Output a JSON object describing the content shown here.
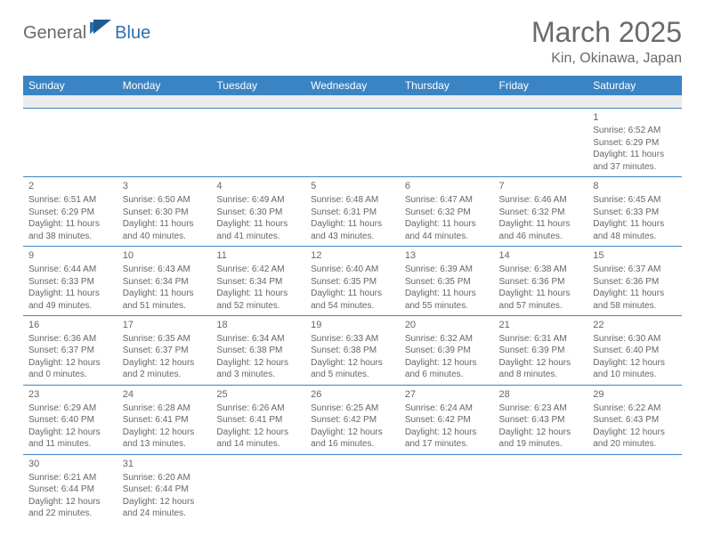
{
  "brand": {
    "part1": "General",
    "part2": "Blue"
  },
  "title": "March 2025",
  "location": "Kin, Okinawa, Japan",
  "colors": {
    "header_bg": "#3b84c4",
    "header_text": "#ffffff",
    "text": "#666666",
    "brand_gray": "#6a6a6a",
    "brand_blue": "#2f6fb0",
    "blank_bg": "#ececec"
  },
  "daynames": [
    "Sunday",
    "Monday",
    "Tuesday",
    "Wednesday",
    "Thursday",
    "Friday",
    "Saturday"
  ],
  "weeks": [
    [
      null,
      null,
      null,
      null,
      null,
      null,
      {
        "n": "1",
        "sr": "6:52 AM",
        "ss": "6:29 PM",
        "dl": "11 hours and 37 minutes."
      }
    ],
    [
      {
        "n": "2",
        "sr": "6:51 AM",
        "ss": "6:29 PM",
        "dl": "11 hours and 38 minutes."
      },
      {
        "n": "3",
        "sr": "6:50 AM",
        "ss": "6:30 PM",
        "dl": "11 hours and 40 minutes."
      },
      {
        "n": "4",
        "sr": "6:49 AM",
        "ss": "6:30 PM",
        "dl": "11 hours and 41 minutes."
      },
      {
        "n": "5",
        "sr": "6:48 AM",
        "ss": "6:31 PM",
        "dl": "11 hours and 43 minutes."
      },
      {
        "n": "6",
        "sr": "6:47 AM",
        "ss": "6:32 PM",
        "dl": "11 hours and 44 minutes."
      },
      {
        "n": "7",
        "sr": "6:46 AM",
        "ss": "6:32 PM",
        "dl": "11 hours and 46 minutes."
      },
      {
        "n": "8",
        "sr": "6:45 AM",
        "ss": "6:33 PM",
        "dl": "11 hours and 48 minutes."
      }
    ],
    [
      {
        "n": "9",
        "sr": "6:44 AM",
        "ss": "6:33 PM",
        "dl": "11 hours and 49 minutes."
      },
      {
        "n": "10",
        "sr": "6:43 AM",
        "ss": "6:34 PM",
        "dl": "11 hours and 51 minutes."
      },
      {
        "n": "11",
        "sr": "6:42 AM",
        "ss": "6:34 PM",
        "dl": "11 hours and 52 minutes."
      },
      {
        "n": "12",
        "sr": "6:40 AM",
        "ss": "6:35 PM",
        "dl": "11 hours and 54 minutes."
      },
      {
        "n": "13",
        "sr": "6:39 AM",
        "ss": "6:35 PM",
        "dl": "11 hours and 55 minutes."
      },
      {
        "n": "14",
        "sr": "6:38 AM",
        "ss": "6:36 PM",
        "dl": "11 hours and 57 minutes."
      },
      {
        "n": "15",
        "sr": "6:37 AM",
        "ss": "6:36 PM",
        "dl": "11 hours and 58 minutes."
      }
    ],
    [
      {
        "n": "16",
        "sr": "6:36 AM",
        "ss": "6:37 PM",
        "dl": "12 hours and 0 minutes."
      },
      {
        "n": "17",
        "sr": "6:35 AM",
        "ss": "6:37 PM",
        "dl": "12 hours and 2 minutes."
      },
      {
        "n": "18",
        "sr": "6:34 AM",
        "ss": "6:38 PM",
        "dl": "12 hours and 3 minutes."
      },
      {
        "n": "19",
        "sr": "6:33 AM",
        "ss": "6:38 PM",
        "dl": "12 hours and 5 minutes."
      },
      {
        "n": "20",
        "sr": "6:32 AM",
        "ss": "6:39 PM",
        "dl": "12 hours and 6 minutes."
      },
      {
        "n": "21",
        "sr": "6:31 AM",
        "ss": "6:39 PM",
        "dl": "12 hours and 8 minutes."
      },
      {
        "n": "22",
        "sr": "6:30 AM",
        "ss": "6:40 PM",
        "dl": "12 hours and 10 minutes."
      }
    ],
    [
      {
        "n": "23",
        "sr": "6:29 AM",
        "ss": "6:40 PM",
        "dl": "12 hours and 11 minutes."
      },
      {
        "n": "24",
        "sr": "6:28 AM",
        "ss": "6:41 PM",
        "dl": "12 hours and 13 minutes."
      },
      {
        "n": "25",
        "sr": "6:26 AM",
        "ss": "6:41 PM",
        "dl": "12 hours and 14 minutes."
      },
      {
        "n": "26",
        "sr": "6:25 AM",
        "ss": "6:42 PM",
        "dl": "12 hours and 16 minutes."
      },
      {
        "n": "27",
        "sr": "6:24 AM",
        "ss": "6:42 PM",
        "dl": "12 hours and 17 minutes."
      },
      {
        "n": "28",
        "sr": "6:23 AM",
        "ss": "6:43 PM",
        "dl": "12 hours and 19 minutes."
      },
      {
        "n": "29",
        "sr": "6:22 AM",
        "ss": "6:43 PM",
        "dl": "12 hours and 20 minutes."
      }
    ],
    [
      {
        "n": "30",
        "sr": "6:21 AM",
        "ss": "6:44 PM",
        "dl": "12 hours and 22 minutes."
      },
      {
        "n": "31",
        "sr": "6:20 AM",
        "ss": "6:44 PM",
        "dl": "12 hours and 24 minutes."
      },
      null,
      null,
      null,
      null,
      null
    ]
  ],
  "labels": {
    "sunrise": "Sunrise:",
    "sunset": "Sunset:",
    "daylight": "Daylight:"
  }
}
